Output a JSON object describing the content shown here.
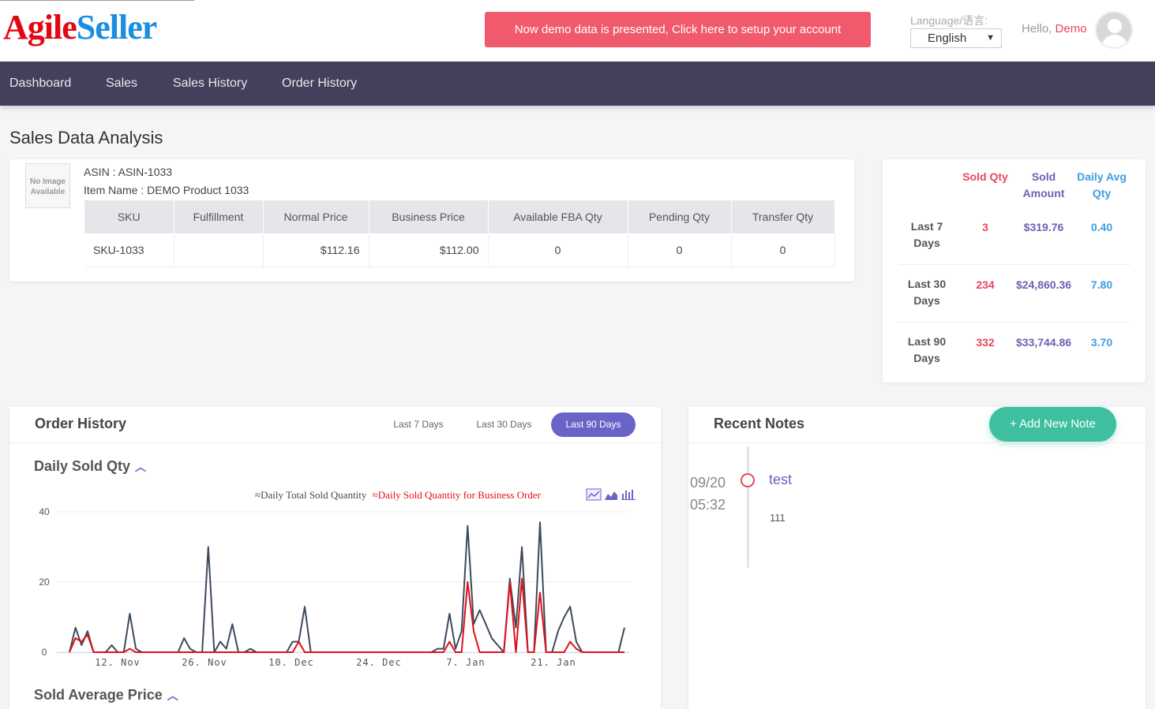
{
  "header": {
    "logo_part1": "Agile",
    "logo_part2": "Seller",
    "demo_banner": "Now demo data is presented, Click here to setup your account",
    "language_label": "Language/语言:",
    "language_value": "English",
    "greeting": "Hello,",
    "username": "Demo"
  },
  "nav": {
    "items": [
      "Dashboard",
      "Sales",
      "Sales History",
      "Order History"
    ]
  },
  "page_title": "Sales Data Analysis",
  "product": {
    "no_image_text": "No Image Available",
    "asin": "ASIN : ASIN-1033",
    "item_name": "Item Name : DEMO Product 1033",
    "columns": [
      "SKU",
      "Fulfillment",
      "Normal Price",
      "Business Price",
      "Available FBA Qty",
      "Pending Qty",
      "Transfer Qty"
    ],
    "row": [
      "SKU-1033",
      "",
      "$112.16",
      "$112.00",
      "0",
      "0",
      "0"
    ]
  },
  "summary": {
    "headers": [
      "Sold Qty",
      "Sold Amount",
      "Daily Avg Qty"
    ],
    "rows": [
      {
        "label": "Last 7 Days",
        "qty": "3",
        "amount": "$319.76",
        "avg": "0.40"
      },
      {
        "label": "Last 30 Days",
        "qty": "234",
        "amount": "$24,860.36",
        "avg": "7.80"
      },
      {
        "label": "Last 90 Days",
        "qty": "332",
        "amount": "$33,744.86",
        "avg": "3.70"
      }
    ],
    "colors": {
      "qty": "#e8475e",
      "amount": "#6f5fb3",
      "avg": "#3b9ee0"
    }
  },
  "order_history": {
    "title": "Order History",
    "tabs": [
      "Last 7 Days",
      "Last 30 Days",
      "Last 90 Days"
    ],
    "active_tab": "Last 90 Days",
    "section1_title": "Daily Sold Qty",
    "section2_title": "Sold Average Price",
    "legend_total": "Daily Total Sold Quantity",
    "legend_business": "Daily Sold Quantity for Business Order"
  },
  "chart_data": {
    "type": "line",
    "x_tick_labels": [
      "12. Nov",
      "26. Nov",
      "10. Dec",
      "24. Dec",
      "7. Jan",
      "21. Jan"
    ],
    "y_tick_labels": [
      "0",
      "20",
      "40"
    ],
    "ylim": [
      0,
      40
    ],
    "grid": true,
    "legend_placement": "top-right",
    "series": [
      {
        "name": "Daily Total Sold Quantity",
        "color": "#3d4a5c",
        "values": [
          0,
          7,
          2,
          6,
          0,
          0,
          0,
          2,
          0,
          0,
          11,
          1,
          0,
          0,
          0,
          0,
          0,
          0,
          0,
          4,
          1,
          0,
          0,
          30,
          0,
          3,
          1,
          8,
          0,
          0,
          1,
          0,
          0,
          0,
          0,
          0,
          0,
          3,
          3,
          13,
          0,
          0,
          0,
          0,
          0,
          0,
          0,
          0,
          0,
          0,
          0,
          0,
          0,
          0,
          0,
          0,
          0,
          0,
          0,
          0,
          0,
          1,
          1,
          11,
          1,
          6,
          36,
          8,
          12,
          8,
          4,
          2,
          0,
          21,
          7,
          30,
          0,
          0,
          37,
          0,
          0,
          6,
          10,
          13,
          3,
          0,
          0,
          0,
          0,
          0,
          0,
          0,
          7
        ]
      },
      {
        "name": "Daily Sold Quantity for Business Order",
        "color": "#e0101c",
        "values": [
          0,
          4,
          3,
          5,
          0,
          0,
          0,
          0,
          0,
          0,
          1,
          0,
          0,
          0,
          0,
          0,
          0,
          0,
          0,
          0,
          0,
          0,
          0,
          0,
          0,
          0,
          0,
          0,
          0,
          0,
          0,
          0,
          0,
          0,
          0,
          0,
          0,
          0,
          3,
          0,
          0,
          0,
          0,
          0,
          0,
          0,
          0,
          0,
          0,
          0,
          0,
          0,
          0,
          0,
          0,
          0,
          0,
          0,
          0,
          0,
          0,
          0,
          0,
          3,
          0,
          0,
          20,
          6,
          0,
          0,
          0,
          0,
          0,
          20,
          0,
          21,
          0,
          0,
          17,
          0,
          0,
          0,
          0,
          3,
          1,
          0,
          0,
          0,
          0,
          0,
          0,
          0,
          0
        ]
      }
    ]
  },
  "notes": {
    "title": "Recent Notes",
    "add_button": "+ Add New Note",
    "date": "09/20",
    "time": "05:32",
    "note_title": "test",
    "note_body": "111"
  }
}
